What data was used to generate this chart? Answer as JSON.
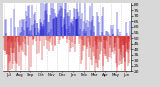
{
  "background_color": "#d8d8d8",
  "plot_bg_color": "#ffffff",
  "ylim": [
    20,
    82
  ],
  "yticks": [
    20,
    25,
    30,
    35,
    40,
    45,
    50,
    55,
    60,
    65,
    70,
    75,
    80
  ],
  "num_points": 365,
  "seed": 42,
  "blue_color": "#0000cc",
  "red_color": "#cc0000",
  "grid_color": "#aaaaaa",
  "figsize": [
    1.6,
    0.87
  ],
  "dpi": 100,
  "mean_val": 52.0,
  "base_amplitude": 12,
  "base_phase": 60,
  "noise_std": 16
}
